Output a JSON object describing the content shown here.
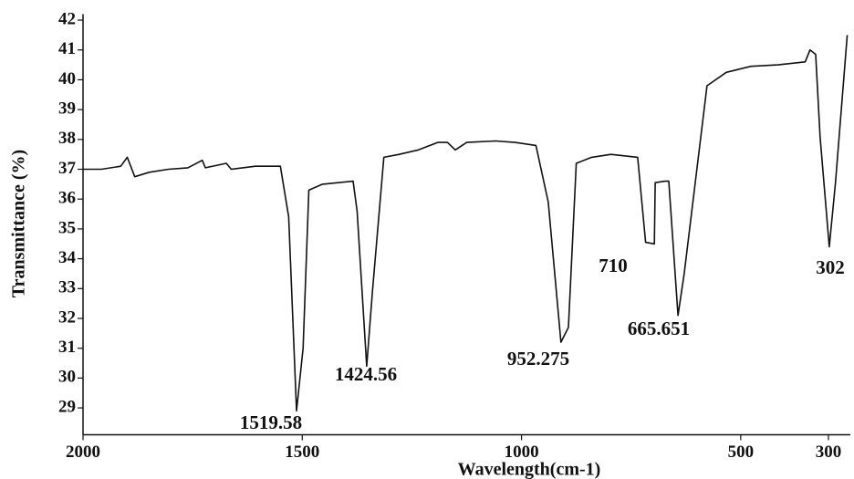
{
  "chart_data": {
    "type": "line",
    "x_label": "Wavelength(cm-1)",
    "y_label": "Transmittance (%)",
    "x": [
      2000,
      1958,
      1914,
      1899,
      1882,
      1849,
      1805,
      1761,
      1728,
      1721,
      1673,
      1662,
      1607,
      1550,
      1531,
      1513,
      1498,
      1485,
      1454,
      1384,
      1375,
      1353,
      1340,
      1314,
      1279,
      1235,
      1191,
      1169,
      1151,
      1125,
      1059,
      1015,
      967,
      939,
      910,
      893,
      875,
      840,
      796,
      735,
      717,
      697,
      695,
      673,
      664,
      643,
      629,
      577,
      533,
      477,
      415,
      353,
      342,
      329,
      319,
      298,
      284,
      257
    ],
    "values": [
      37.0,
      37.0,
      37.1,
      37.4,
      36.75,
      36.9,
      37.0,
      37.05,
      37.3,
      37.05,
      37.2,
      37.0,
      37.1,
      37.1,
      35.4,
      28.9,
      31.0,
      36.3,
      36.5,
      36.6,
      35.6,
      30.4,
      32.9,
      37.4,
      37.5,
      37.65,
      37.9,
      37.9,
      37.65,
      37.9,
      37.95,
      37.9,
      37.8,
      35.9,
      31.2,
      31.7,
      37.2,
      37.4,
      37.5,
      37.4,
      34.55,
      34.5,
      36.55,
      36.6,
      36.6,
      32.1,
      33.5,
      39.8,
      40.25,
      40.45,
      40.5,
      40.6,
      41.0,
      40.85,
      38.1,
      34.4,
      36.55,
      41.5
    ],
    "color": "#111111",
    "xlim": [
      2000,
      250
    ],
    "xticks": [
      2000,
      1500,
      1000,
      500,
      300
    ],
    "ylim": [
      28.1,
      42.2
    ],
    "yticks": [
      29,
      30,
      31,
      32,
      33,
      34,
      35,
      36,
      37,
      38,
      39,
      40,
      41,
      42
    ],
    "annotations": [
      "1519.58",
      "1424.56",
      "952.275",
      "710",
      "665.651",
      "302"
    ]
  }
}
